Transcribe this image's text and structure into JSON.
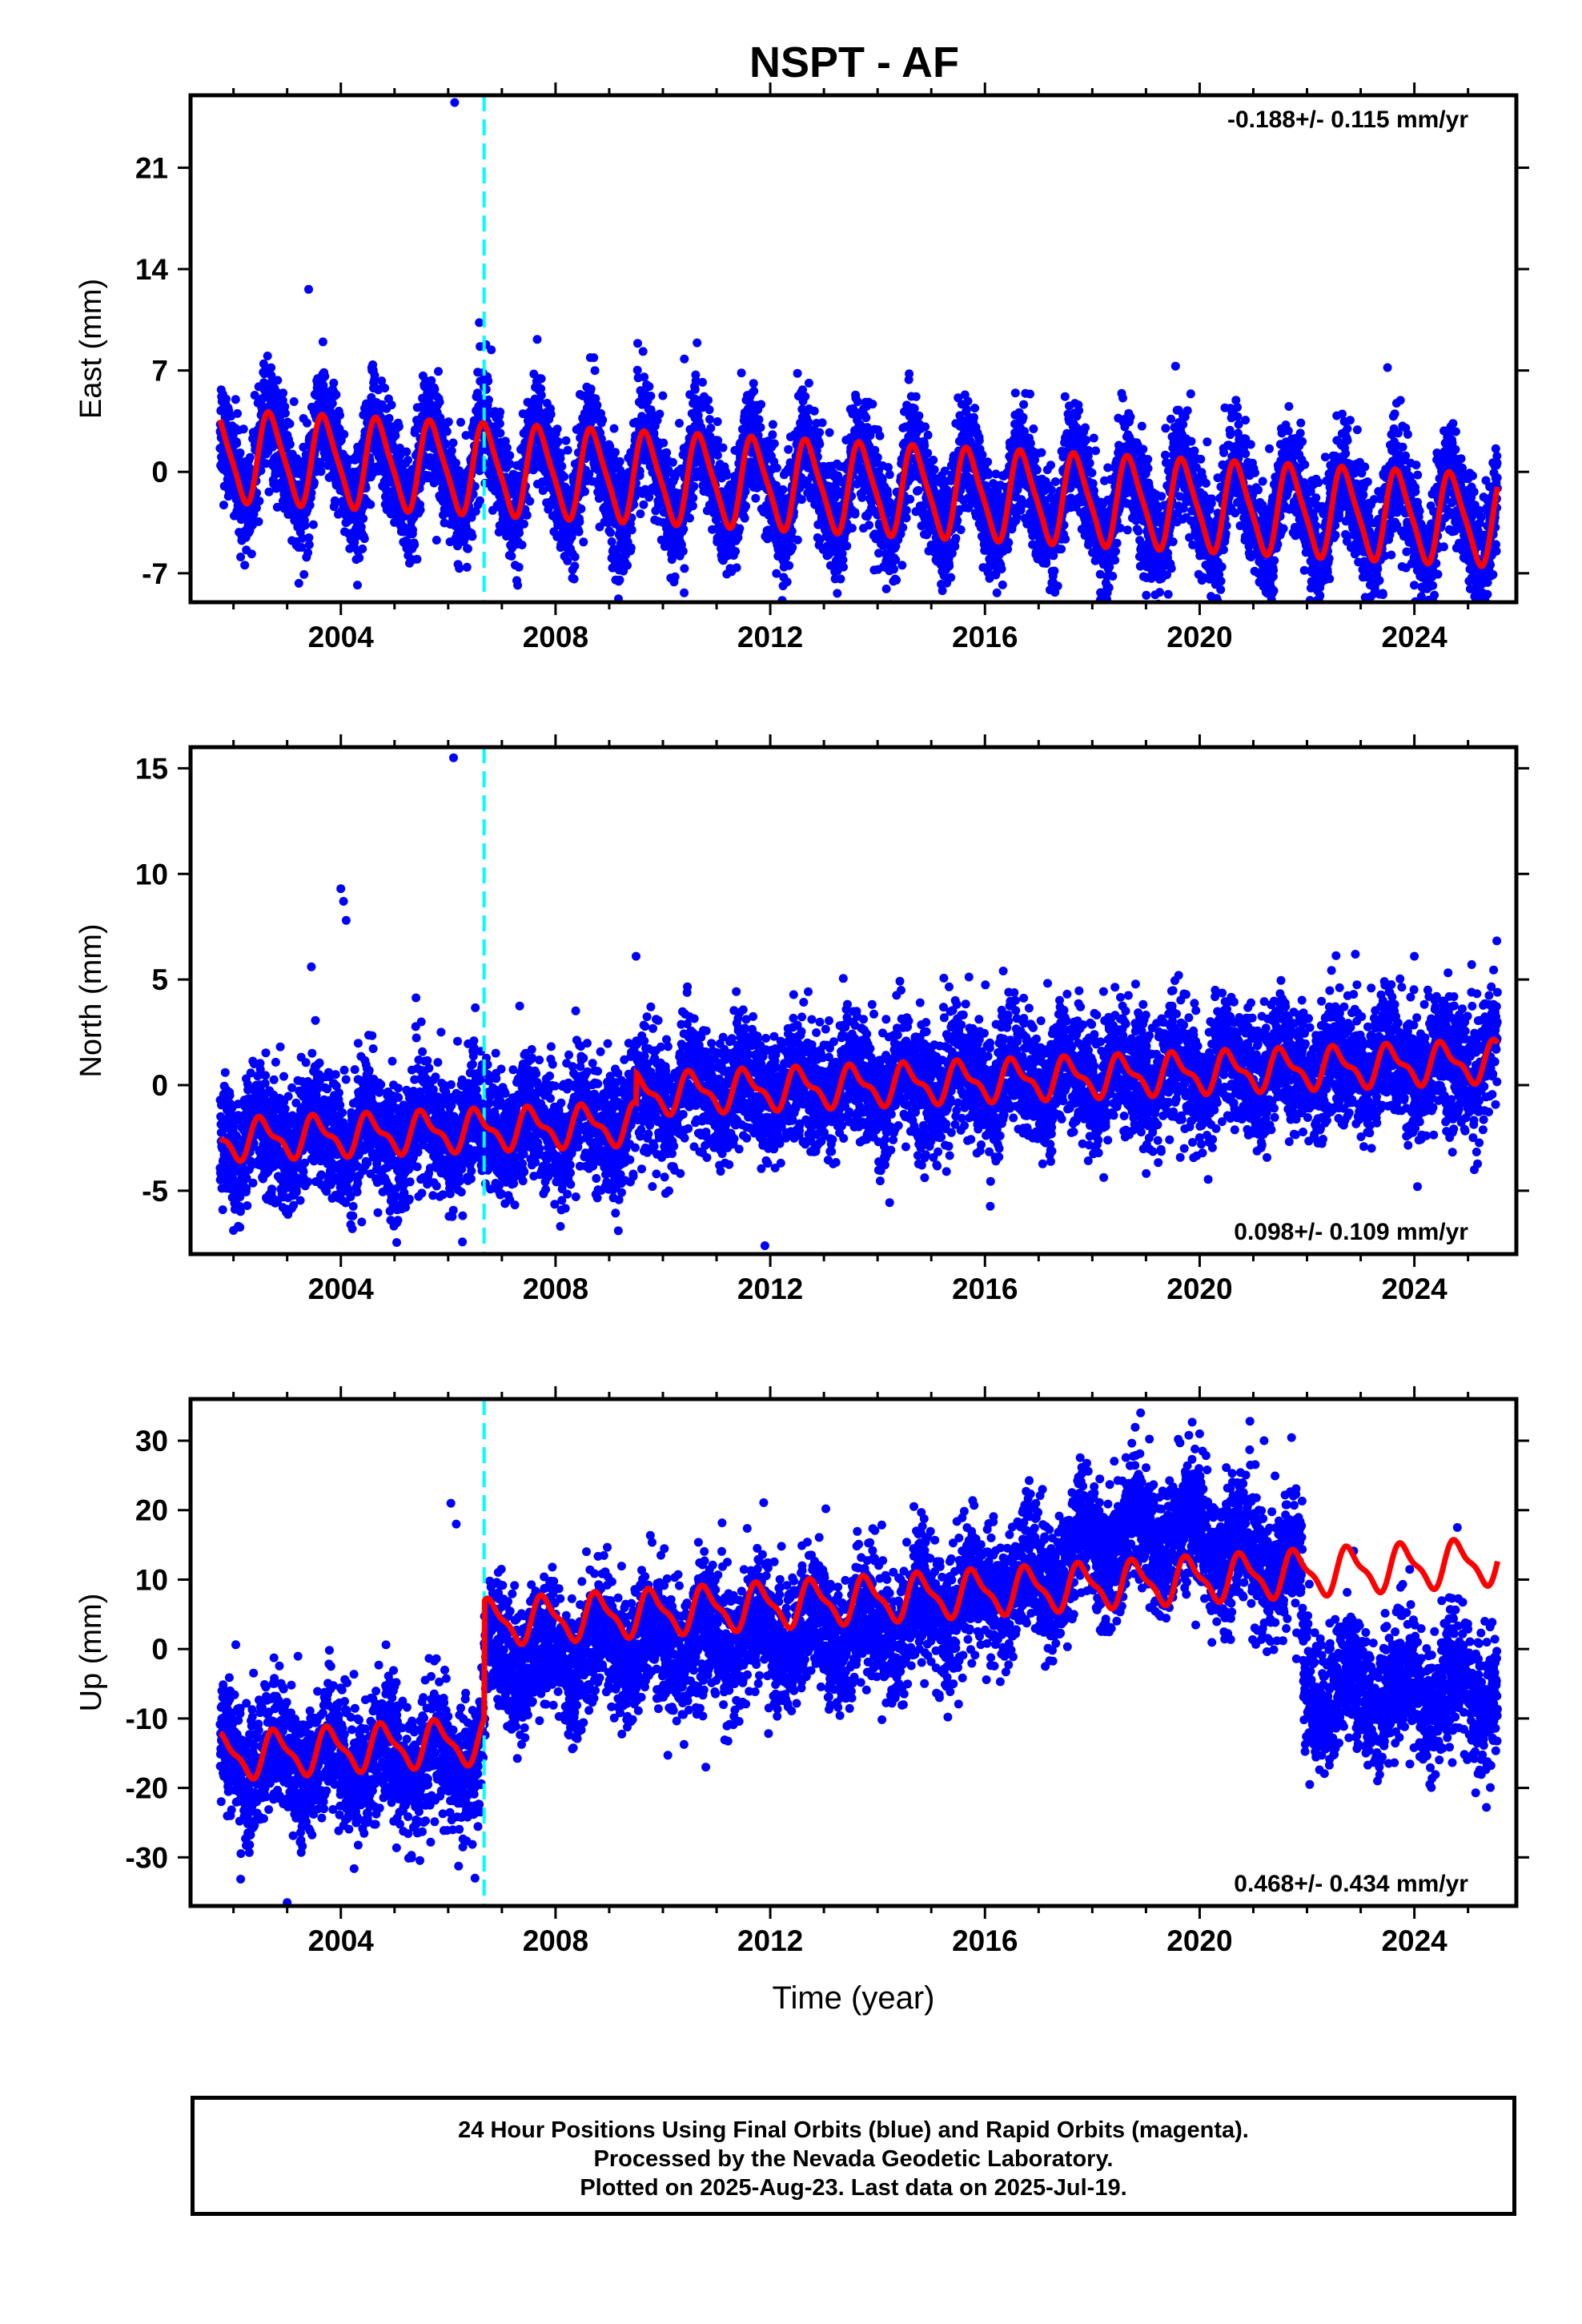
{
  "title": "NSPT - AF",
  "footer": {
    "line1": "24 Hour Positions Using Final Orbits (blue) and Rapid Orbits (magenta).",
    "line2": "Processed by the Nevada Geodetic Laboratory.",
    "line3": "Plotted on 2025-Aug-23. Last data on 2025-Jul-19."
  },
  "colors": {
    "data_points": "#0000ff",
    "model_fit": "#ff0000",
    "event_line": "#00ffff"
  },
  "chart_data": [
    {
      "type": "scatter",
      "name": "east",
      "ylabel": "East (mm)",
      "xlabel": "",
      "rate_label": "-0.188+/- 0.115 mm/yr",
      "rate_position": "top-right",
      "xlim": [
        2001.2,
        2025.9
      ],
      "ylim": [
        -9,
        26
      ],
      "xticks": [
        2004,
        2008,
        2012,
        2016,
        2020,
        2024
      ],
      "xtick_labels": [
        "2004",
        "2008",
        "2012",
        "2016",
        "2020",
        "2024"
      ],
      "yticks": [
        -7,
        0,
        7,
        14,
        21
      ],
      "ytick_labels": [
        "-7",
        "0",
        "7",
        "14",
        "21"
      ],
      "event_line_x": 2006.67,
      "data_start": 2001.75,
      "data_end": 2025.55,
      "model": {
        "offset": 1.1,
        "rate": -0.188,
        "ref_year": 2001.75,
        "annual_amp": 3.0,
        "annual_phase": 0.45,
        "semi_amp": 0.6,
        "step": 0
      },
      "noise_sd": 1.9,
      "outliers": [
        [
          2006.12,
          25.5
        ],
        [
          2006.58,
          10.3
        ],
        [
          2003.4,
          12.6
        ],
        [
          2010.4,
          7.8
        ],
        [
          2023.5,
          7.2
        ],
        [
          2019.55,
          7.3
        ]
      ],
      "series": [
        {
          "name": "24 Hour Positions Using Final Orbits",
          "color": "#0000ff"
        },
        {
          "name": "model",
          "color": "#ff0000"
        }
      ]
    },
    {
      "type": "scatter",
      "name": "north",
      "ylabel": "North (mm)",
      "xlabel": "",
      "rate_label": "0.098+/- 0.109 mm/yr",
      "rate_position": "bottom-right",
      "xlim": [
        2001.2,
        2025.9
      ],
      "ylim": [
        -8,
        16
      ],
      "xticks": [
        2004,
        2008,
        2012,
        2016,
        2020,
        2024
      ],
      "xtick_labels": [
        "2004",
        "2008",
        "2012",
        "2016",
        "2020",
        "2024"
      ],
      "yticks": [
        -5,
        0,
        5,
        10,
        15
      ],
      "ytick_labels": [
        "-5",
        "0",
        "5",
        "10",
        "15"
      ],
      "event_line_x": 2006.67,
      "data_start": 2001.75,
      "data_end": 2025.55,
      "model": {
        "offset": -2.6,
        "rate": 0.098,
        "ref_year": 2001.75,
        "annual_amp": 0.85,
        "annual_phase": 0.3,
        "semi_amp": 0.35,
        "step": 0,
        "step2_year": 2009.5,
        "step2": 1.4
      },
      "noise_sd": 1.45,
      "outliers": [
        [
          2006.1,
          15.5
        ],
        [
          2004.0,
          9.3
        ],
        [
          2004.05,
          8.7
        ],
        [
          2004.1,
          7.8
        ],
        [
          2003.45,
          5.6
        ],
        [
          2009.5,
          6.1
        ],
        [
          2022.9,
          6.2
        ],
        [
          2024.0,
          6.1
        ],
        [
          2011.9,
          -7.6
        ],
        [
          2001.8,
          -5.9
        ]
      ],
      "series": [
        {
          "name": "24 Hour Positions Using Final Orbits",
          "color": "#0000ff"
        },
        {
          "name": "model",
          "color": "#ff0000"
        }
      ]
    },
    {
      "type": "scatter",
      "name": "up",
      "ylabel": "Up (mm)",
      "xlabel": "Time (year)",
      "rate_label": "0.468+/- 0.434 mm/yr",
      "rate_position": "bottom-right",
      "xlim": [
        2001.2,
        2025.9
      ],
      "ylim": [
        -37,
        36
      ],
      "xticks": [
        2004,
        2008,
        2012,
        2016,
        2020,
        2024
      ],
      "xtick_labels": [
        "2004",
        "2008",
        "2012",
        "2016",
        "2020",
        "2024"
      ],
      "yticks": [
        -30,
        -20,
        -10,
        0,
        10,
        20,
        30
      ],
      "ytick_labels": [
        "-30",
        "-20",
        "-10",
        "0",
        "10",
        "20",
        "30"
      ],
      "event_line_x": 2006.67,
      "data_start": 2001.75,
      "data_end": 2025.55,
      "model": {
        "offset": -15.5,
        "rate": 0.468,
        "ref_year": 2001.75,
        "annual_amp": 3.0,
        "annual_phase": 0.55,
        "semi_amp": 1.0,
        "step": 17.0
      },
      "data_profile": [
        [
          2001.75,
          -16
        ],
        [
          2006.6,
          -16
        ],
        [
          2006.72,
          -1
        ],
        [
          2008.0,
          -1
        ],
        [
          2010.0,
          1
        ],
        [
          2014.0,
          3
        ],
        [
          2016.0,
          8
        ],
        [
          2017.3,
          11
        ],
        [
          2018.0,
          15
        ],
        [
          2020.0,
          17
        ],
        [
          2021.0,
          13
        ],
        [
          2021.9,
          11
        ],
        [
          2021.95,
          -6
        ],
        [
          2025.55,
          -6
        ]
      ],
      "noise_sd": 4.6,
      "outliers": [
        [
          2006.05,
          21
        ],
        [
          2006.15,
          18
        ],
        [
          2018.9,
          34
        ],
        [
          2020.0,
          31
        ],
        [
          2021.2,
          30
        ],
        [
          2024.8,
          17.5
        ],
        [
          2003.0,
          -36.5
        ],
        [
          2006.5,
          -33
        ],
        [
          2022.05,
          -19.5
        ],
        [
          2010.8,
          -17
        ]
      ],
      "series": [
        {
          "name": "24 Hour Positions Using Final Orbits",
          "color": "#0000ff"
        },
        {
          "name": "model",
          "color": "#ff0000"
        }
      ]
    }
  ]
}
